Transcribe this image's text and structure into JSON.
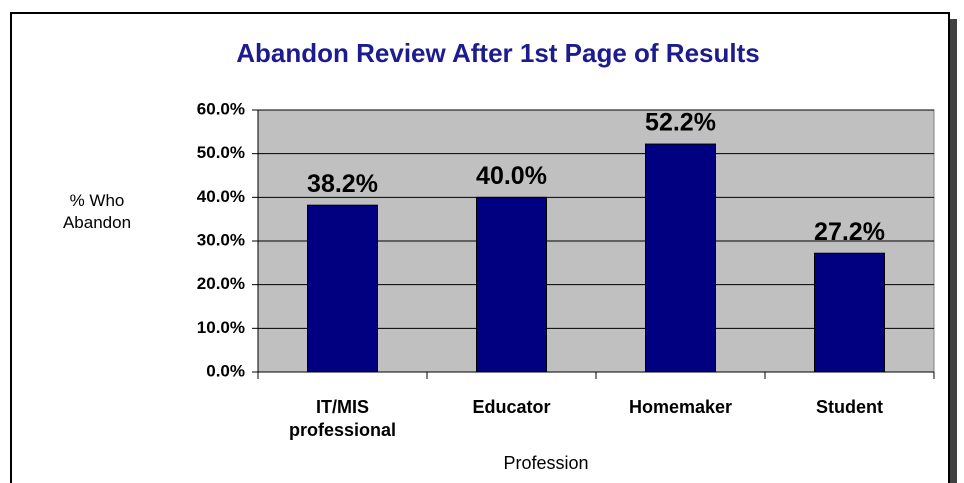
{
  "chart_data": {
    "type": "bar",
    "title": "Abandon Review After 1st Page of Results",
    "x_label": "Profession",
    "y_label": "% Who Abandon",
    "categories": [
      "IT/MIS professional",
      "Educator",
      "Homemaker",
      "Student"
    ],
    "values": [
      38.2,
      40.0,
      52.2,
      27.2
    ],
    "value_labels": [
      "38.2%",
      "40.0%",
      "52.2%",
      "27.2%"
    ],
    "color": "#000080",
    "ylim": [
      0,
      60
    ],
    "yticks": [
      {
        "value": 0,
        "label": "0.0%"
      },
      {
        "value": 10,
        "label": "10.0%"
      },
      {
        "value": 20,
        "label": "20.0%"
      },
      {
        "value": 30,
        "label": "30.0%"
      },
      {
        "value": 40,
        "label": "40.0%"
      },
      {
        "value": 50,
        "label": "50.0%"
      },
      {
        "value": 60,
        "label": "60.0%"
      }
    ],
    "grid": true
  }
}
